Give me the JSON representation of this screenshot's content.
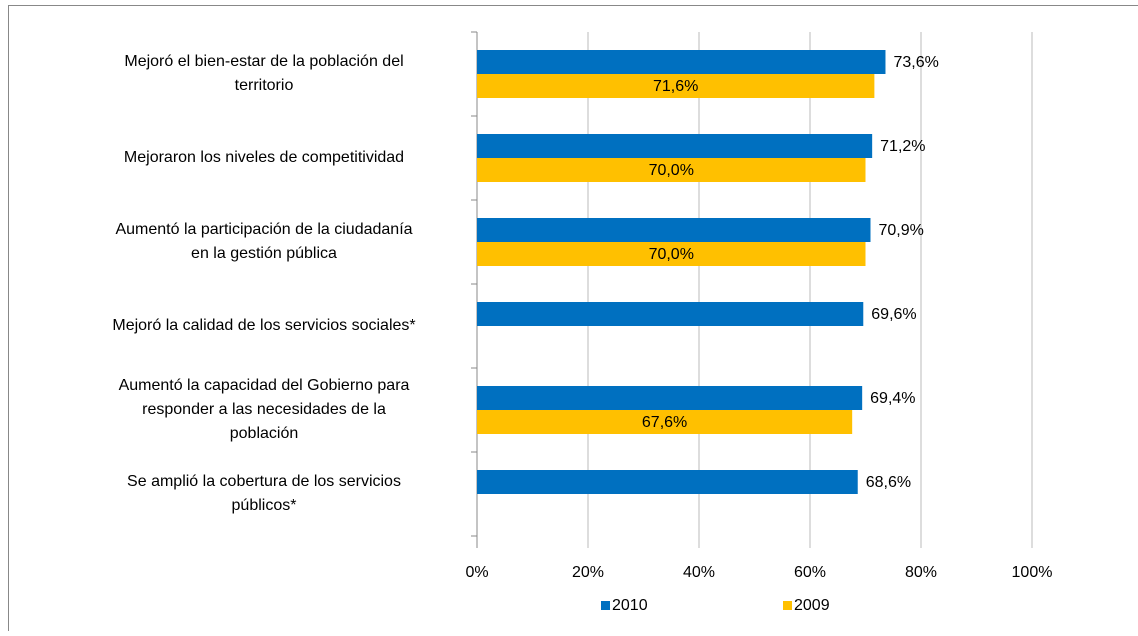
{
  "chart_data": {
    "type": "bar",
    "orientation": "horizontal",
    "categories": [
      "Mejoró el bien-estar de la población del\nterritorio",
      "Mejoraron los niveles de competitividad",
      "Aumentó la participación de la ciudadanía\nen la gestión pública",
      "Mejoró la calidad de los servicios sociales*",
      "Aumentó la capacidad del Gobierno para\nresponder a las necesidades de la\npoblación",
      "Se amplió la cobertura de los servicios\npúblicos*"
    ],
    "series": [
      {
        "name": "2010",
        "color": "#0070c0",
        "values": [
          73.6,
          71.2,
          70.9,
          69.6,
          69.4,
          68.6
        ],
        "value_labels": [
          "73,6%",
          "71,2%",
          "70,9%",
          "69,6%",
          "69,4%",
          "68,6%"
        ]
      },
      {
        "name": "2009",
        "color": "#ffc000",
        "values": [
          71.6,
          70.0,
          70.0,
          null,
          67.6,
          null
        ],
        "value_labels": [
          "71,6%",
          "70,0%",
          "70,0%",
          null,
          "67,6%",
          null
        ]
      }
    ],
    "xlim": [
      0,
      100
    ],
    "xticks": [
      {
        "value": 0,
        "label": "0%"
      },
      {
        "value": 20,
        "label": "20%"
      },
      {
        "value": 40,
        "label": "40%"
      },
      {
        "value": 60,
        "label": "60%"
      },
      {
        "value": 80,
        "label": "80%"
      },
      {
        "value": 100,
        "label": "100%"
      }
    ],
    "grid": true,
    "legend": "bottom"
  }
}
